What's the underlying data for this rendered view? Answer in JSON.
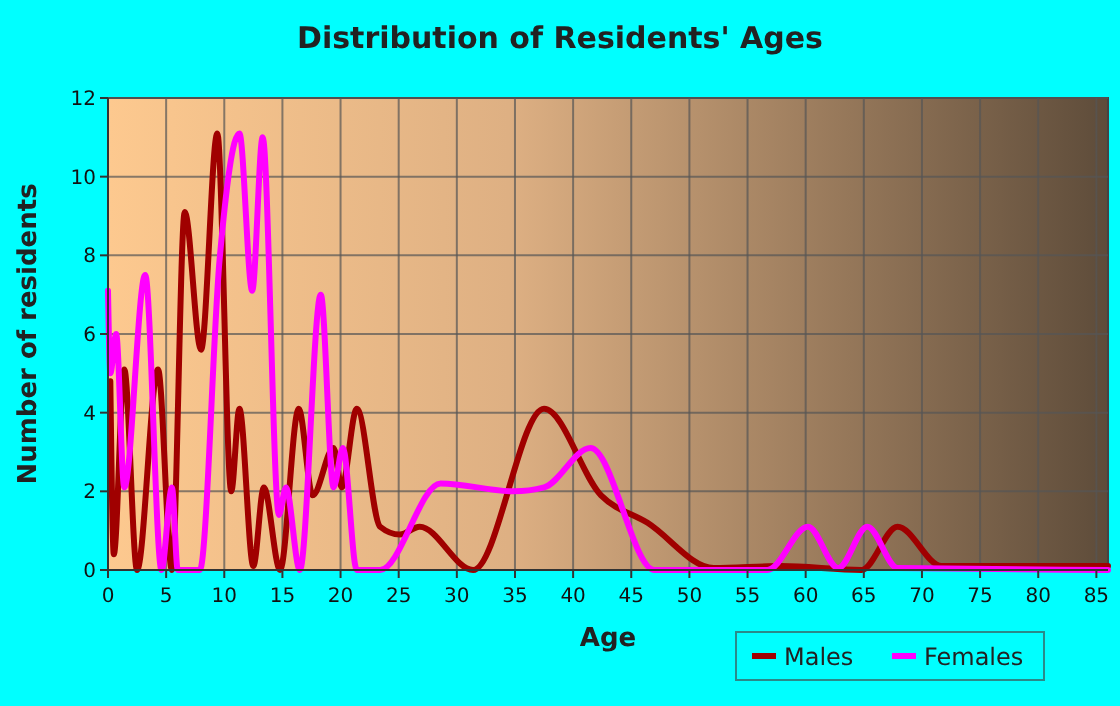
{
  "chart_data": {
    "type": "line",
    "title": "Distribution of Residents' Ages",
    "xlabel": "Age",
    "ylabel": "Number of residents",
    "xlim": [
      0,
      86
    ],
    "xticks": [
      0,
      5,
      10,
      15,
      20,
      25,
      30,
      35,
      40,
      45,
      50,
      55,
      60,
      65,
      70,
      75,
      80,
      85
    ],
    "ylim": [
      0,
      12
    ],
    "yticks": [
      0,
      2,
      4,
      6,
      8,
      10,
      12
    ],
    "grid": true,
    "legend": "bottom",
    "line_style": "solid",
    "marker": "none",
    "series": [
      {
        "name": "Males",
        "color": "#a00000",
        "x": [
          0.2,
          0.5,
          1.4,
          2.5,
          4.3,
          5.5,
          6.6,
          8,
          9.4,
          10.6,
          11.3,
          12.5,
          13.4,
          14.8,
          16.4,
          17.6,
          19.4,
          20.1,
          21.4,
          23.4,
          25.1,
          26.8,
          31.4,
          37.5,
          42.4,
          46.4,
          52.1,
          57.9,
          64.8,
          67.9,
          71.7,
          86
        ],
        "values": [
          4.8,
          0.4,
          5.1,
          0,
          5.1,
          0,
          9.1,
          5.6,
          11.1,
          2,
          4.1,
          0.1,
          2.1,
          0,
          4.1,
          1.9,
          3.1,
          2.1,
          4.1,
          1.1,
          0.9,
          1.1,
          0,
          4.1,
          1.9,
          1.2,
          0.05,
          0.1,
          0,
          1.1,
          0.1,
          0.1
        ]
      },
      {
        "name": "Females",
        "color": "#ff00ff",
        "x": [
          0,
          0.2,
          0.7,
          1.4,
          3.2,
          4.6,
          5.5,
          6,
          7.9,
          9.6,
          11.3,
          12.4,
          13.3,
          14.7,
          15.3,
          16.5,
          18.3,
          19.4,
          20.2,
          21.4,
          23.4,
          28.6,
          34.9,
          37.5,
          41.5,
          47,
          56.7,
          60.2,
          62.8,
          65.3,
          67.9,
          86
        ],
        "values": [
          7.1,
          5,
          6,
          2.1,
          7.5,
          0,
          2.1,
          0,
          0,
          7.9,
          11.1,
          7.1,
          11,
          1.4,
          2.1,
          0,
          7,
          2.1,
          3.1,
          0,
          0,
          2.2,
          2,
          2.1,
          3.1,
          0,
          0,
          1.1,
          0.05,
          1.1,
          0.05,
          0
        ]
      }
    ]
  }
}
